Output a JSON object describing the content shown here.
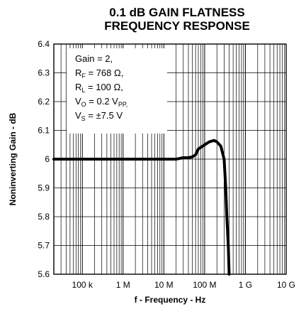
{
  "chart_data": {
    "type": "line",
    "title_line1": "0.1 dB GAIN FLATNESS",
    "title_line2": "FREQUENCY RESPONSE",
    "xlabel": "f - Frequency - Hz",
    "ylabel": "Noninverting Gain - dB",
    "x_scale": "log",
    "xlim": [
      20000,
      10000000000
    ],
    "ylim": [
      5.6,
      6.4
    ],
    "grid": true,
    "x_ticks": [
      {
        "value": 100000,
        "label": "100 k"
      },
      {
        "value": 1000000,
        "label": "1 M"
      },
      {
        "value": 10000000,
        "label": "10 M"
      },
      {
        "value": 100000000,
        "label": "100 M"
      },
      {
        "value": 1000000000,
        "label": "1 G"
      },
      {
        "value": 10000000000,
        "label": "10 G"
      }
    ],
    "y_ticks": [
      {
        "value": 5.6,
        "label": "5.6"
      },
      {
        "value": 5.7,
        "label": "5.7"
      },
      {
        "value": 5.8,
        "label": "5.8"
      },
      {
        "value": 5.9,
        "label": "5.9"
      },
      {
        "value": 6.0,
        "label": "6"
      },
      {
        "value": 6.1,
        "label": "6.1"
      },
      {
        "value": 6.2,
        "label": "6.2"
      },
      {
        "value": 6.3,
        "label": "6.3"
      },
      {
        "value": 6.4,
        "label": "6.4"
      }
    ],
    "annotations": [
      {
        "text": "Gain = 2,"
      },
      {
        "main": "R",
        "sub": "F",
        "rest": " = 768 Ω,"
      },
      {
        "main": "R",
        "sub": "L",
        "rest": " = 100 Ω,"
      },
      {
        "main": "V",
        "sub": "O",
        "rest": " = 0.2 V",
        "sub2": "PP,"
      },
      {
        "main": "V",
        "sub": "S",
        "rest": " = ±7.5 V"
      }
    ],
    "series": [
      {
        "x": [
          20000,
          100000,
          1000000,
          10000000,
          20000000,
          30000000,
          40000000,
          50000000,
          60000000,
          70000000,
          100000000,
          130000000,
          170000000,
          200000000,
          250000000,
          300000000,
          330000000,
          350000000,
          380000000,
          400000000
        ],
        "y": [
          6.0,
          6.0,
          6.0,
          6.0,
          6.0,
          6.005,
          6.005,
          6.008,
          6.015,
          6.035,
          6.05,
          6.06,
          6.065,
          6.06,
          6.045,
          6.0,
          5.9,
          5.8,
          5.7,
          5.6
        ]
      }
    ]
  }
}
